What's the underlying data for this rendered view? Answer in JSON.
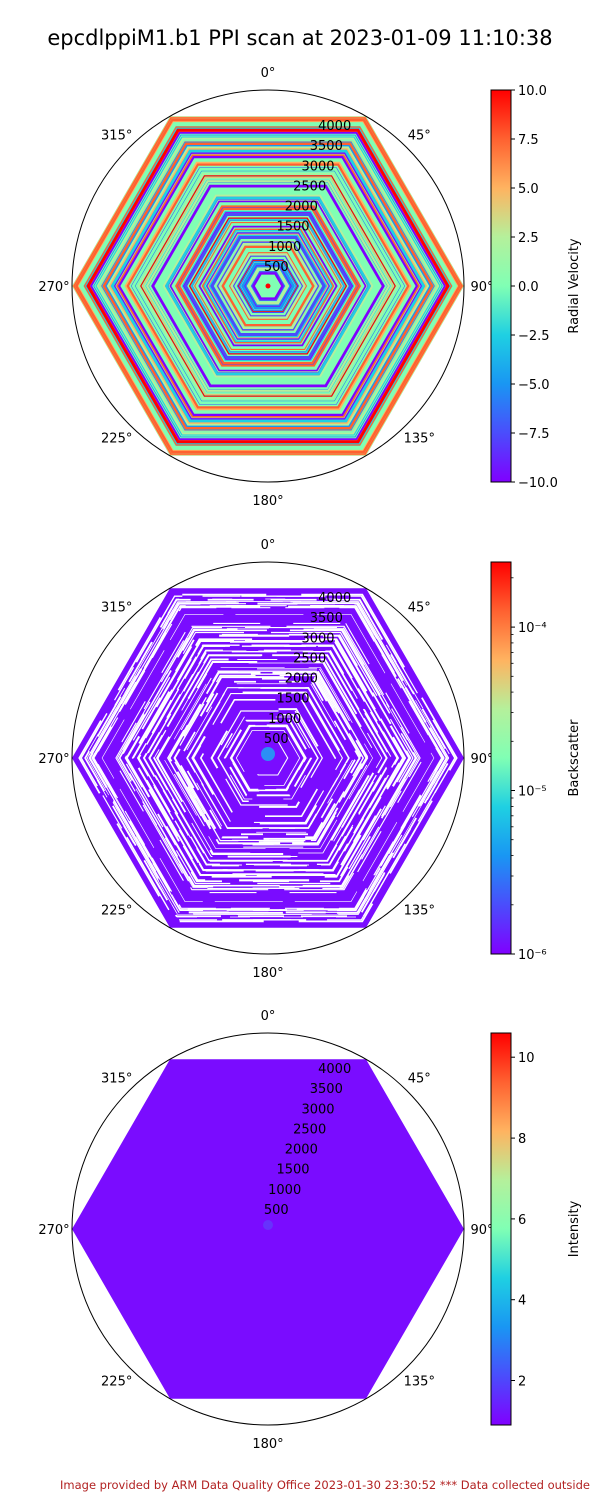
{
  "title": "epcdlppiM1.b1 PPI scan at 2023-01-09 11:10:38",
  "footer": "Image provided by ARM Data Quality Office 2023-01-30 23:30:52    *** Data collected outside",
  "chart_data": [
    {
      "type": "heatmap",
      "projection": "polar",
      "angle_labels": [
        "0°",
        "45°",
        "90°",
        "135°",
        "180°",
        "225°",
        "270°",
        "315°"
      ],
      "radial_labels": [
        "500",
        "1000",
        "1500",
        "2000",
        "2500",
        "3000",
        "3500",
        "4000"
      ],
      "radial_values": [
        500,
        1000,
        1500,
        2000,
        2500,
        3000,
        3500,
        4000
      ],
      "rlim": [
        0,
        4500
      ],
      "colorbar": {
        "label": "Radial Velocity",
        "scale": "linear",
        "range": [
          -10.0,
          10.0
        ],
        "ticks": [
          10.0,
          7.5,
          5.0,
          2.5,
          0.0,
          -2.5,
          -5.0,
          -7.5,
          -10.0
        ],
        "tick_labels": [
          "10.0",
          "7.5",
          "5.0",
          "2.5",
          "0.0",
          "−2.5",
          "−5.0",
          "−7.5",
          "−10.0"
        ],
        "colormap": "rainbow"
      }
    },
    {
      "type": "heatmap",
      "projection": "polar",
      "angle_labels": [
        "0°",
        "45°",
        "90°",
        "135°",
        "180°",
        "225°",
        "270°",
        "315°"
      ],
      "radial_labels": [
        "500",
        "1000",
        "1500",
        "2000",
        "2500",
        "3000",
        "3500",
        "4000"
      ],
      "radial_values": [
        500,
        1000,
        1500,
        2000,
        2500,
        3000,
        3500,
        4000
      ],
      "rlim": [
        0,
        4500
      ],
      "colorbar": {
        "label": "Backscatter",
        "scale": "log",
        "range": [
          1e-06,
          0.00025
        ],
        "ticks": [
          0.0001,
          1e-05,
          1e-06
        ],
        "tick_labels": [
          "10⁻⁴",
          "10⁻⁵",
          "10⁻⁶"
        ],
        "colormap": "rainbow"
      }
    },
    {
      "type": "heatmap",
      "projection": "polar",
      "angle_labels": [
        "0°",
        "45°",
        "90°",
        "135°",
        "180°",
        "225°",
        "270°",
        "315°"
      ],
      "radial_labels": [
        "500",
        "1000",
        "1500",
        "2000",
        "2500",
        "3000",
        "3500",
        "4000"
      ],
      "radial_values": [
        500,
        1000,
        1500,
        2000,
        2500,
        3000,
        3500,
        4000
      ],
      "rlim": [
        0,
        4500
      ],
      "colorbar": {
        "label": "Intensity",
        "scale": "linear",
        "range": [
          0.9,
          10.6
        ],
        "ticks": [
          10,
          8,
          6,
          4,
          2
        ],
        "tick_labels": [
          "10",
          "8",
          "6",
          "4",
          "2"
        ],
        "colormap": "rainbow"
      }
    }
  ]
}
